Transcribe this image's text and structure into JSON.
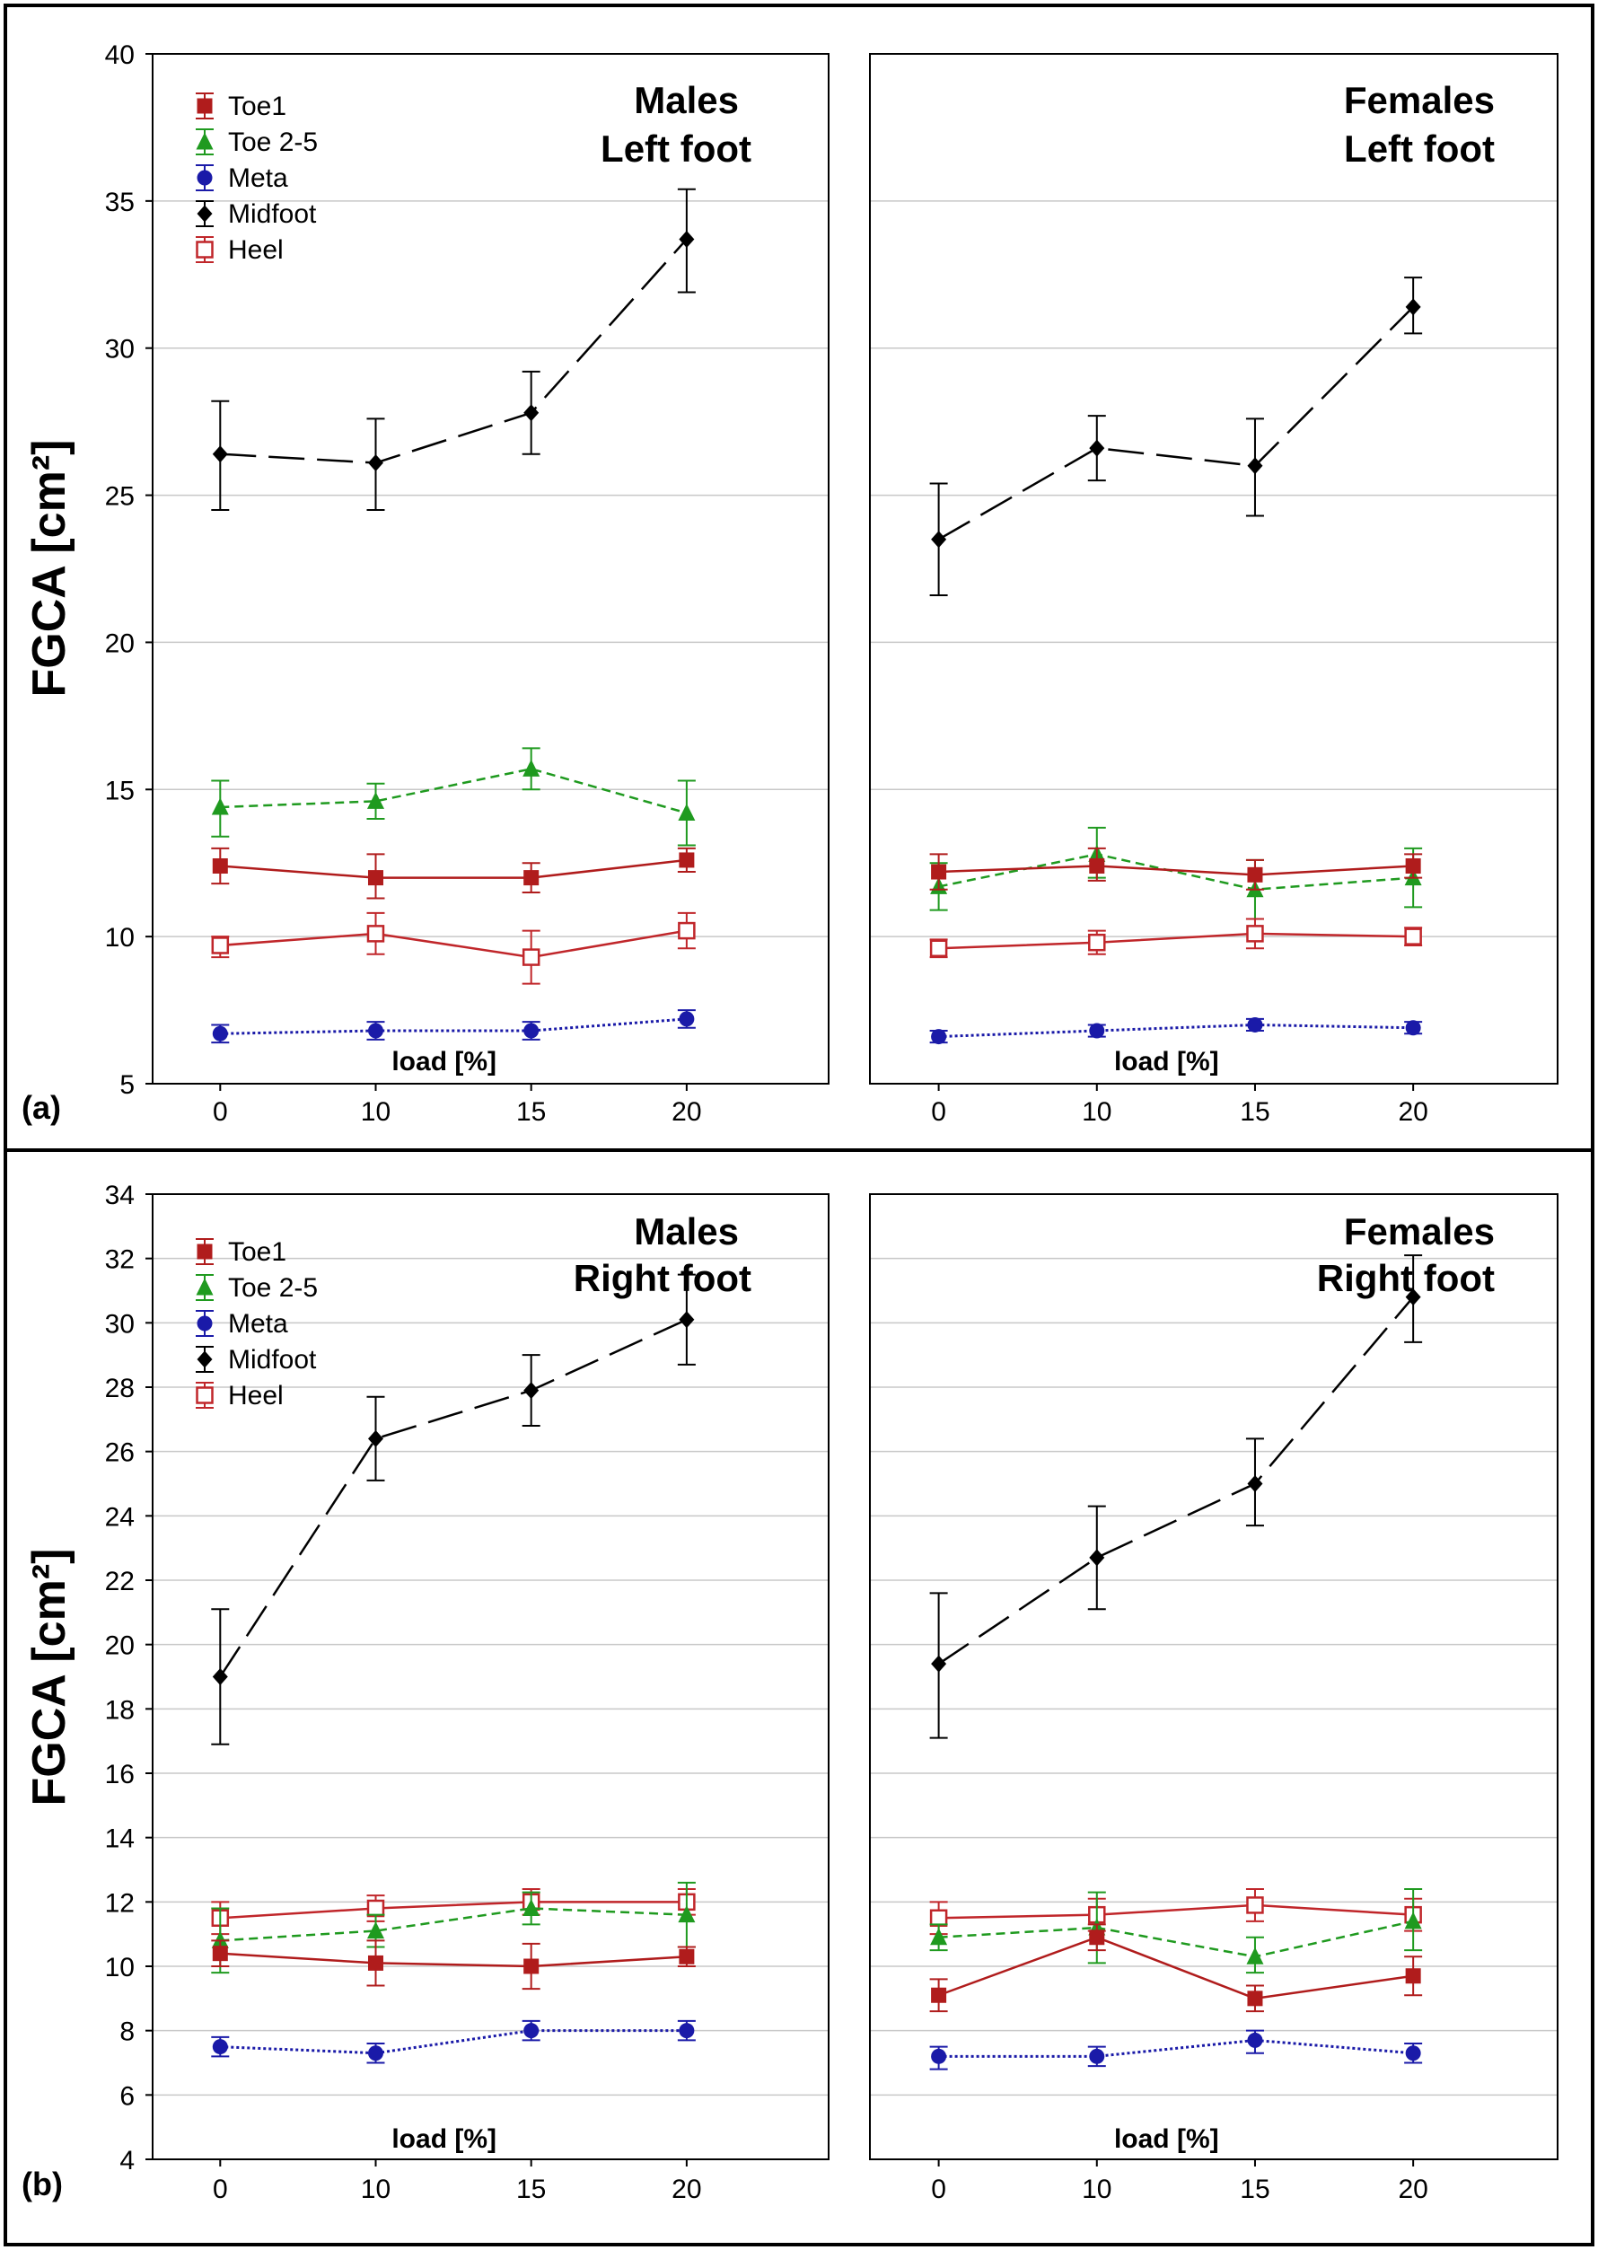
{
  "figure": {
    "y_axis_label": "FGCA [cm²]",
    "x_axis_label": "load [%]"
  },
  "panels": [
    {
      "id": "a",
      "panel_label": "(a)",
      "y_ticks": [
        5,
        10,
        15,
        20,
        25,
        30,
        35,
        40
      ],
      "ylim": [
        5,
        40
      ],
      "x_ticks": [
        "0",
        "10",
        "15",
        "20"
      ],
      "legend": [
        "Toe1",
        "Toe 2-5",
        "Meta",
        "Midfoot",
        "Heel"
      ],
      "subplots": [
        {
          "title_line1": "Males",
          "title_line2": "Left foot",
          "series": [
            {
              "name": "Midfoot",
              "values": [
                26.4,
                26.1,
                27.8,
                33.7
              ],
              "err_low": [
                24.5,
                24.5,
                26.4,
                31.9
              ],
              "err_high": [
                28.2,
                27.6,
                29.2,
                35.4
              ]
            },
            {
              "name": "Toe 2-5",
              "values": [
                14.4,
                14.6,
                15.7,
                14.2
              ],
              "err_low": [
                13.4,
                14.0,
                15.0,
                13.1
              ],
              "err_high": [
                15.3,
                15.2,
                16.4,
                15.3
              ]
            },
            {
              "name": "Toe1",
              "values": [
                12.4,
                12.0,
                12.0,
                12.6
              ],
              "err_low": [
                11.8,
                11.3,
                11.5,
                12.2
              ],
              "err_high": [
                13.0,
                12.8,
                12.5,
                13.0
              ]
            },
            {
              "name": "Heel",
              "values": [
                9.7,
                10.1,
                9.3,
                10.2
              ],
              "err_low": [
                9.3,
                9.4,
                8.4,
                9.6
              ],
              "err_high": [
                10.0,
                10.8,
                10.2,
                10.8
              ]
            },
            {
              "name": "Meta",
              "values": [
                6.7,
                6.8,
                6.8,
                7.2
              ],
              "err_low": [
                6.4,
                6.5,
                6.5,
                6.9
              ],
              "err_high": [
                7.0,
                7.1,
                7.1,
                7.5
              ]
            }
          ]
        },
        {
          "title_line1": "Females",
          "title_line2": "Left foot",
          "series": [
            {
              "name": "Midfoot",
              "values": [
                23.5,
                26.6,
                26.0,
                31.4
              ],
              "err_low": [
                21.6,
                25.5,
                24.3,
                30.5
              ],
              "err_high": [
                25.4,
                27.7,
                27.6,
                32.4
              ]
            },
            {
              "name": "Toe 2-5",
              "values": [
                11.7,
                12.8,
                11.6,
                12.0
              ],
              "err_low": [
                10.9,
                12.0,
                10.6,
                11.0
              ],
              "err_high": [
                12.5,
                13.7,
                12.6,
                13.0
              ]
            },
            {
              "name": "Toe1",
              "values": [
                12.2,
                12.4,
                12.1,
                12.4
              ],
              "err_low": [
                11.6,
                11.9,
                11.6,
                12.0
              ],
              "err_high": [
                12.8,
                13.0,
                12.6,
                12.8
              ]
            },
            {
              "name": "Heel",
              "values": [
                9.6,
                9.8,
                10.1,
                10.0
              ],
              "err_low": [
                9.3,
                9.4,
                9.6,
                9.7
              ],
              "err_high": [
                9.9,
                10.2,
                10.6,
                10.3
              ]
            },
            {
              "name": "Meta",
              "values": [
                6.6,
                6.8,
                7.0,
                6.9
              ],
              "err_low": [
                6.4,
                6.6,
                6.8,
                6.7
              ],
              "err_high": [
                6.8,
                7.0,
                7.2,
                7.1
              ]
            }
          ]
        }
      ]
    },
    {
      "id": "b",
      "panel_label": "(b)",
      "y_ticks": [
        4,
        6,
        8,
        10,
        12,
        14,
        16,
        18,
        20,
        22,
        24,
        26,
        28,
        30,
        32,
        34
      ],
      "ylim": [
        4,
        34
      ],
      "x_ticks": [
        "0",
        "10",
        "15",
        "20"
      ],
      "legend": [
        "Toe1",
        "Toe 2-5",
        "Meta",
        "Midfoot",
        "Heel"
      ],
      "subplots": [
        {
          "title_line1": "Males",
          "title_line2": "Right foot",
          "series": [
            {
              "name": "Midfoot",
              "values": [
                19.0,
                26.4,
                27.9,
                30.1
              ],
              "err_low": [
                16.9,
                25.1,
                26.8,
                28.7
              ],
              "err_high": [
                21.1,
                27.7,
                29.0,
                31.5
              ]
            },
            {
              "name": "Heel",
              "values": [
                11.5,
                11.8,
                12.0,
                12.0
              ],
              "err_low": [
                11.0,
                11.4,
                11.6,
                11.6
              ],
              "err_high": [
                12.0,
                12.2,
                12.4,
                12.4
              ]
            },
            {
              "name": "Toe 2-5",
              "values": [
                10.8,
                11.1,
                11.8,
                11.6
              ],
              "err_low": [
                9.8,
                10.6,
                11.3,
                10.6
              ],
              "err_high": [
                11.8,
                11.6,
                12.3,
                12.6
              ]
            },
            {
              "name": "Toe1",
              "values": [
                10.4,
                10.1,
                10.0,
                10.3
              ],
              "err_low": [
                10.0,
                9.4,
                9.3,
                10.0
              ],
              "err_high": [
                10.8,
                10.8,
                10.7,
                10.6
              ]
            },
            {
              "name": "Meta",
              "values": [
                7.5,
                7.3,
                8.0,
                8.0
              ],
              "err_low": [
                7.2,
                7.0,
                7.7,
                7.7
              ],
              "err_high": [
                7.8,
                7.6,
                8.3,
                8.3
              ]
            }
          ]
        },
        {
          "title_line1": "Females",
          "title_line2": "Right foot",
          "series": [
            {
              "name": "Midfoot",
              "values": [
                19.4,
                22.7,
                25.0,
                30.8
              ],
              "err_low": [
                17.1,
                21.1,
                23.7,
                29.4
              ],
              "err_high": [
                21.6,
                24.3,
                26.4,
                32.1
              ]
            },
            {
              "name": "Heel",
              "values": [
                11.5,
                11.6,
                11.9,
                11.6
              ],
              "err_low": [
                11.0,
                11.1,
                11.4,
                11.1
              ],
              "err_high": [
                12.0,
                12.1,
                12.4,
                12.1
              ]
            },
            {
              "name": "Toe 2-5",
              "values": [
                10.9,
                11.2,
                10.3,
                11.4
              ],
              "err_low": [
                10.5,
                10.1,
                9.8,
                10.5
              ],
              "err_high": [
                11.3,
                12.3,
                10.9,
                12.4
              ]
            },
            {
              "name": "Toe1",
              "values": [
                9.1,
                10.9,
                9.0,
                9.7
              ],
              "err_low": [
                8.6,
                10.5,
                8.6,
                9.1
              ],
              "err_high": [
                9.6,
                11.3,
                9.4,
                10.3
              ]
            },
            {
              "name": "Meta",
              "values": [
                7.2,
                7.2,
                7.7,
                7.3
              ],
              "err_low": [
                6.8,
                6.9,
                7.3,
                7.0
              ],
              "err_high": [
                7.5,
                7.5,
                8.0,
                7.6
              ]
            }
          ]
        }
      ]
    }
  ],
  "series_styles": {
    "Toe1": {
      "color": "#b01c1c",
      "marker": "square-filled",
      "dash": "solid"
    },
    "Toe 2-5": {
      "color": "#1f9a1f",
      "marker": "triangle",
      "dash": "dashed"
    },
    "Meta": {
      "color": "#1a1aa8",
      "marker": "circle",
      "dash": "dotted"
    },
    "Midfoot": {
      "color": "#000000",
      "marker": "diamond",
      "dash": "longdash"
    },
    "Heel": {
      "color": "#c0262a",
      "marker": "square-open",
      "dash": "solid"
    }
  },
  "chart_data": [
    {
      "type": "line",
      "title": "(a) Males — Left foot",
      "xlabel": "load [%]",
      "ylabel": "FGCA [cm²]",
      "categories": [
        "0",
        "10",
        "15",
        "20"
      ],
      "ylim": [
        5,
        40
      ],
      "series": [
        {
          "name": "Toe1",
          "values": [
            12.4,
            12.0,
            12.0,
            12.6
          ]
        },
        {
          "name": "Toe 2-5",
          "values": [
            14.4,
            14.6,
            15.7,
            14.2
          ]
        },
        {
          "name": "Meta",
          "values": [
            6.7,
            6.8,
            6.8,
            7.2
          ]
        },
        {
          "name": "Midfoot",
          "values": [
            26.4,
            26.1,
            27.8,
            33.7
          ]
        },
        {
          "name": "Heel",
          "values": [
            9.7,
            10.1,
            9.3,
            10.2
          ]
        }
      ]
    },
    {
      "type": "line",
      "title": "(a) Females — Left foot",
      "xlabel": "load [%]",
      "ylabel": "FGCA [cm²]",
      "categories": [
        "0",
        "10",
        "15",
        "20"
      ],
      "ylim": [
        5,
        40
      ],
      "series": [
        {
          "name": "Toe1",
          "values": [
            12.2,
            12.4,
            12.1,
            12.4
          ]
        },
        {
          "name": "Toe 2-5",
          "values": [
            11.7,
            12.8,
            11.6,
            12.0
          ]
        },
        {
          "name": "Meta",
          "values": [
            6.6,
            6.8,
            7.0,
            6.9
          ]
        },
        {
          "name": "Midfoot",
          "values": [
            23.5,
            26.6,
            26.0,
            31.4
          ]
        },
        {
          "name": "Heel",
          "values": [
            9.6,
            9.8,
            10.1,
            10.0
          ]
        }
      ]
    },
    {
      "type": "line",
      "title": "(b) Males — Right foot",
      "xlabel": "load [%]",
      "ylabel": "FGCA [cm²]",
      "categories": [
        "0",
        "10",
        "15",
        "20"
      ],
      "ylim": [
        4,
        34
      ],
      "series": [
        {
          "name": "Toe1",
          "values": [
            10.4,
            10.1,
            10.0,
            10.3
          ]
        },
        {
          "name": "Toe 2-5",
          "values": [
            10.8,
            11.1,
            11.8,
            11.6
          ]
        },
        {
          "name": "Meta",
          "values": [
            7.5,
            7.3,
            8.0,
            8.0
          ]
        },
        {
          "name": "Midfoot",
          "values": [
            19.0,
            26.4,
            27.9,
            30.1
          ]
        },
        {
          "name": "Heel",
          "values": [
            11.5,
            11.8,
            12.0,
            12.0
          ]
        }
      ]
    },
    {
      "type": "line",
      "title": "(b) Females — Right foot",
      "xlabel": "load [%]",
      "ylabel": "FGCA [cm²]",
      "categories": [
        "0",
        "10",
        "15",
        "20"
      ],
      "ylim": [
        4,
        34
      ],
      "series": [
        {
          "name": "Toe1",
          "values": [
            9.1,
            10.9,
            9.0,
            9.7
          ]
        },
        {
          "name": "Toe 2-5",
          "values": [
            10.9,
            11.2,
            10.3,
            11.4
          ]
        },
        {
          "name": "Meta",
          "values": [
            7.2,
            7.2,
            7.7,
            7.3
          ]
        },
        {
          "name": "Midfoot",
          "values": [
            19.4,
            22.7,
            25.0,
            30.8
          ]
        },
        {
          "name": "Heel",
          "values": [
            11.5,
            11.6,
            11.9,
            11.6
          ]
        }
      ]
    }
  ]
}
